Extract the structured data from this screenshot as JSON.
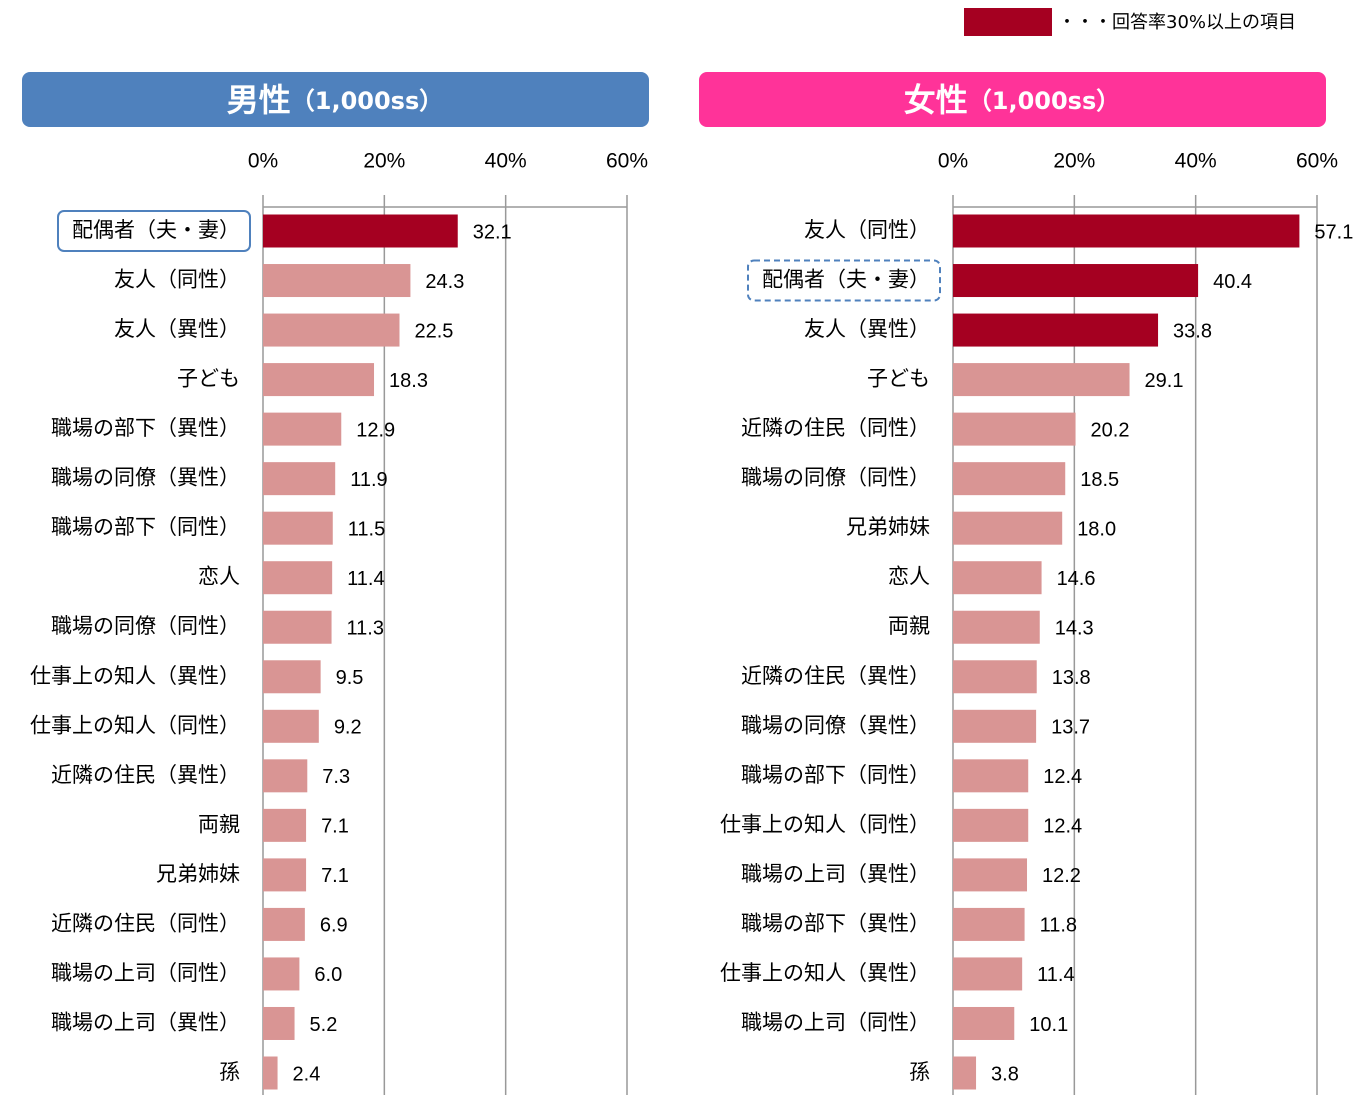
{
  "legend": {
    "label": "・・・回答率30%以上の項目",
    "color": "#a50021"
  },
  "chart_data": [
    {
      "type": "barh",
      "title": "男性",
      "subtitle": "（1,000ss）",
      "header_color": "#4f81bd",
      "categories": [
        "配偶者（夫・妻）",
        "友人（同性）",
        "友人（異性）",
        "子ども",
        "職場の部下（異性）",
        "職場の同僚（異性）",
        "職場の部下（同性）",
        "恋人",
        "職場の同僚（同性）",
        "仕事上の知人（異性）",
        "仕事上の知人（同性）",
        "近隣の住民（異性）",
        "両親",
        "兄弟姉妹",
        "近隣の住民（同性）",
        "職場の上司（同性）",
        "職場の上司（異性）",
        "孫"
      ],
      "values": [
        32.1,
        24.3,
        22.5,
        18.3,
        12.9,
        11.9,
        11.5,
        11.4,
        11.3,
        9.5,
        9.2,
        7.3,
        7.1,
        7.1,
        6.9,
        6.0,
        5.2,
        2.4
      ],
      "value_labels": [
        "32.1",
        "24.3",
        "22.5",
        "18.3",
        "12.9",
        "11.9",
        "11.5",
        "11.4",
        "11.3",
        "9.5",
        "9.2",
        "7.3",
        "7.1",
        "7.1",
        "6.9",
        "6.0",
        "5.2",
        "2.4"
      ],
      "colors": [
        "#a50021",
        "#d99594",
        "#d99594",
        "#d99594",
        "#d99594",
        "#d99594",
        "#d99594",
        "#d99594",
        "#d99594",
        "#d99594",
        "#d99594",
        "#d99594",
        "#d99594",
        "#d99594",
        "#d99594",
        "#d99594",
        "#d99594",
        "#d99594"
      ],
      "outline_index": 0,
      "outline_style": "solid",
      "xlim": [
        0,
        60
      ],
      "xticks": [
        {
          "value": 0,
          "label": "0%"
        },
        {
          "value": 20,
          "label": "20%"
        },
        {
          "value": 40,
          "label": "40%"
        },
        {
          "value": 60,
          "label": "60%"
        }
      ],
      "grid": true
    },
    {
      "type": "barh",
      "title": "女性",
      "subtitle": "（1,000ss）",
      "header_color": "#ff3399",
      "categories": [
        "友人（同性）",
        "配偶者（夫・妻）",
        "友人（異性）",
        "子ども",
        "近隣の住民（同性）",
        "職場の同僚（同性）",
        "兄弟姉妹",
        "恋人",
        "両親",
        "近隣の住民（異性）",
        "職場の同僚（異性）",
        "職場の部下（同性）",
        "仕事上の知人（同性）",
        "職場の上司（異性）",
        "職場の部下（異性）",
        "仕事上の知人（異性）",
        "職場の上司（同性）",
        "孫"
      ],
      "values": [
        57.1,
        40.4,
        33.8,
        29.1,
        20.2,
        18.5,
        18.0,
        14.6,
        14.3,
        13.8,
        13.7,
        12.4,
        12.4,
        12.2,
        11.8,
        11.4,
        10.1,
        3.8
      ],
      "value_labels": [
        "57.1",
        "40.4",
        "33.8",
        "29.1",
        "20.2",
        "18.5",
        "18.0",
        "14.6",
        "14.3",
        "13.8",
        "13.7",
        "12.4",
        "12.4",
        "12.2",
        "11.8",
        "11.4",
        "10.1",
        "3.8"
      ],
      "colors": [
        "#a50021",
        "#a50021",
        "#a50021",
        "#d99594",
        "#d99594",
        "#d99594",
        "#d99594",
        "#d99594",
        "#d99594",
        "#d99594",
        "#d99594",
        "#d99594",
        "#d99594",
        "#d99594",
        "#d99594",
        "#d99594",
        "#d99594",
        "#d99594"
      ],
      "outline_index": 1,
      "outline_style": "dashed",
      "xlim": [
        0,
        60
      ],
      "xticks": [
        {
          "value": 0,
          "label": "0%"
        },
        {
          "value": 20,
          "label": "20%"
        },
        {
          "value": 40,
          "label": "40%"
        },
        {
          "value": 60,
          "label": "60%"
        }
      ],
      "grid": true
    }
  ]
}
